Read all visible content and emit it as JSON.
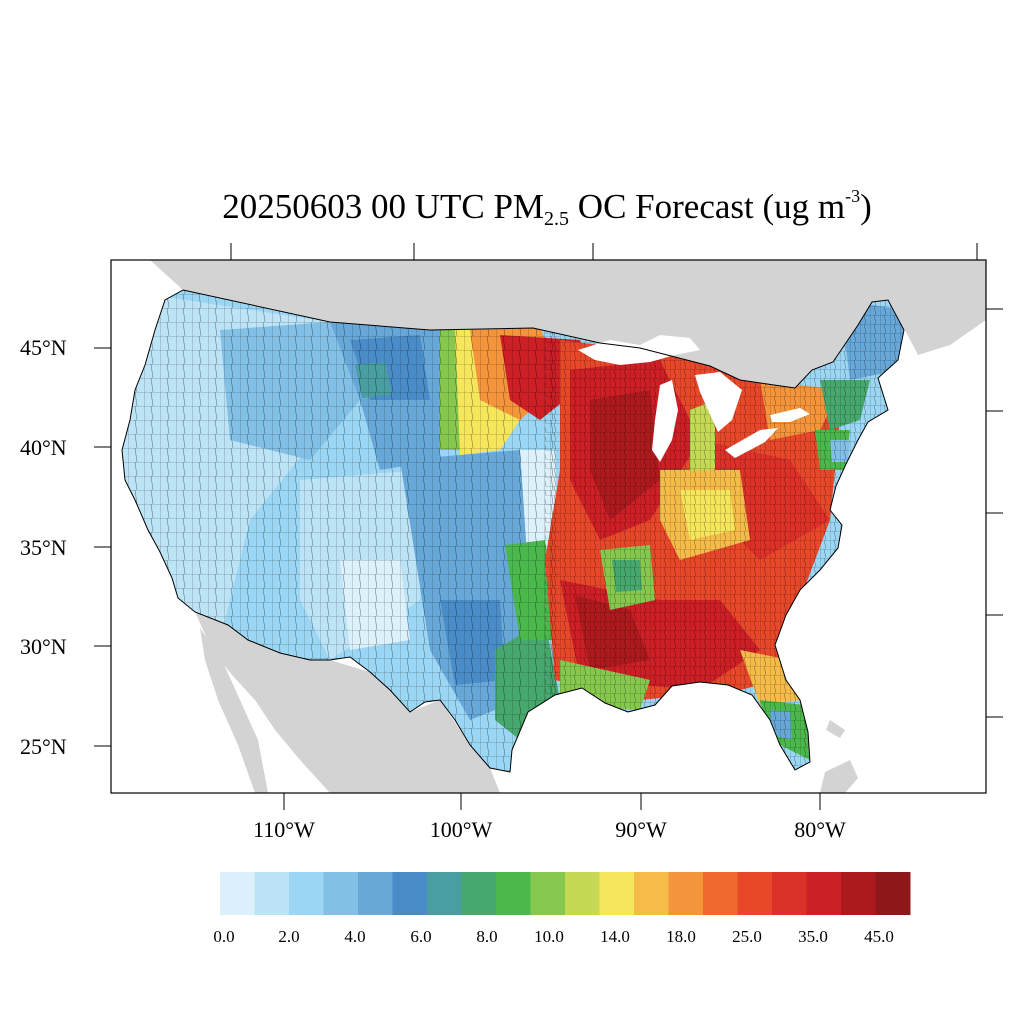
{
  "title": {
    "prefix": "20250603 00 UTC PM",
    "subscript": "2.5",
    "middle": " OC Forecast (ug m",
    "superscript": "-3",
    "suffix": ")"
  },
  "lat_labels": [
    "45°N",
    "40°N",
    "35°N",
    "30°N",
    "25°N"
  ],
  "lon_labels": [
    "110°W",
    "100°W",
    "90°W",
    "80°W"
  ],
  "colorbar": {
    "colors": [
      "#dcf1fb",
      "#bde3f6",
      "#9bd7f4",
      "#82c0e6",
      "#67a8d9",
      "#4a8cc8",
      "#489ea0",
      "#47a86d",
      "#4bb84c",
      "#86c84e",
      "#c5d955",
      "#f6e65b",
      "#f6bc4a",
      "#f4943b",
      "#ef6a2e",
      "#e8482a",
      "#dc3129",
      "#cd1f26",
      "#ad1a1e",
      "#8d1719"
    ],
    "labels": [
      "0.0",
      "2.0",
      "4.0",
      "6.0",
      "8.0",
      "10.0",
      "14.0",
      "18.0",
      "25.0",
      "35.0",
      "45.0"
    ]
  },
  "colors": {
    "ocean": "#ffffff",
    "land_outside": "#d3d3d3",
    "border": "#000000"
  }
}
